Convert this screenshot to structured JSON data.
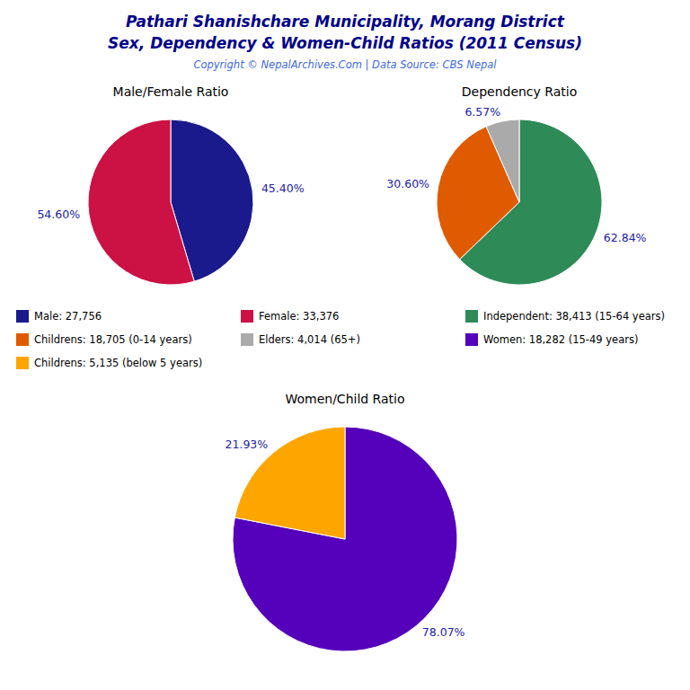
{
  "title": "Pathari Shanishchare Municipality, Morang District",
  "subtitle": "Sex, Dependency & Women-Child Ratios (2011 Census)",
  "annotations": [
    "Copyright © NepalArchives.Com | Data Source: CBS Nepal"
  ],
  "chart_data": [
    {
      "type": "pie",
      "title": "Male/Female Ratio",
      "categories": [
        "Male: 27,756",
        "Female: 33,376"
      ],
      "values": [
        45.4,
        54.6
      ],
      "value_labels": [
        "45.40%",
        "54.60%"
      ],
      "colors": [
        "#1a1a8c",
        "#cc1144"
      ],
      "data_labels": true,
      "legend": "bottom"
    },
    {
      "type": "pie",
      "title": "Dependency Ratio",
      "categories": [
        "Independent: 38,413 (15-64 years)",
        "Childrens: 18,705 (0-14 years)",
        "Elders: 4,014 (65+)"
      ],
      "values": [
        62.84,
        30.6,
        6.57
      ],
      "value_labels": [
        "62.84%",
        "30.60%",
        "6.57%"
      ],
      "colors": [
        "#2e8b57",
        "#e05a00",
        "#aaaaaa"
      ],
      "data_labels": true,
      "legend": "bottom"
    },
    {
      "type": "pie",
      "title": "Women/Child Ratio",
      "categories": [
        "Women: 18,282 (15-49 years)",
        "Childrens: 5,135 (below 5 years)"
      ],
      "values": [
        78.07,
        21.93
      ],
      "value_labels": [
        "78.07%",
        "21.93%"
      ],
      "colors": [
        "#5500bb",
        "#ffa500"
      ],
      "data_labels": true,
      "legend": "top"
    }
  ]
}
